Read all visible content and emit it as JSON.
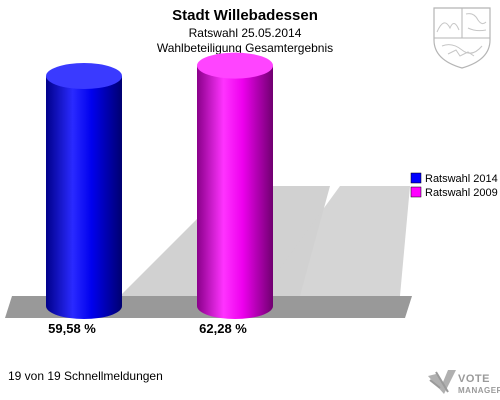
{
  "header": {
    "title": "Stadt Willebadessen",
    "subtitle1": "Ratswahl 25.05.2014",
    "subtitle2": "Wahlbeteiligung Gesamtergebnis"
  },
  "chart_data": {
    "type": "bar",
    "categories": [
      "Ratswahl 2014",
      "Ratswahl 2009"
    ],
    "values": [
      59.58,
      62.28
    ],
    "value_labels": [
      "59,58 %",
      "62,28 %"
    ],
    "series": [
      {
        "name": "Ratswahl 2014",
        "color": "#0000ff"
      },
      {
        "name": "Ratswahl 2009",
        "color": "#ff00ff"
      }
    ],
    "ylim": [
      0,
      100
    ],
    "grid": false,
    "legend": "right",
    "style": "3d-cylinder"
  },
  "legend": {
    "items": [
      {
        "label": "Ratswahl 2014",
        "color": "#0000ff"
      },
      {
        "label": "Ratswahl 2009",
        "color": "#ff00ff"
      }
    ]
  },
  "footer": {
    "status": "19 von 19 Schnellmeldungen"
  },
  "brand": {
    "line1": "VOTE",
    "line2": "MANAGER"
  },
  "icons": {
    "coat_of_arms": "nrw-coat-of-arms-icon",
    "brand_logo": "vote-manager-logo-icon"
  }
}
